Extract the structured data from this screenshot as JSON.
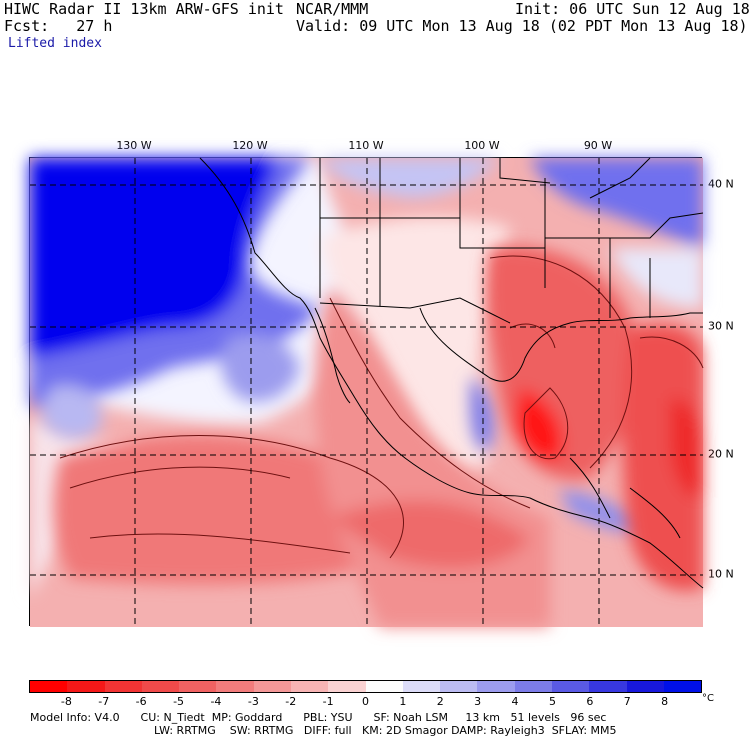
{
  "header": {
    "line1_left": "HIWC Radar II 13km ARW-GFS init",
    "line1_center": "NCAR/MMM",
    "line1_right": "Init: 06 UTC Sun 12 Aug 18",
    "line2_left": "Fcst:   27 h",
    "line2_right": "Valid: 09 UTC Mon 13 Aug 18 (02 PDT Mon 13 Aug 18)",
    "field_name": "Lifted index"
  },
  "map": {
    "lon_labels": [
      "130 W",
      "120 W",
      "110 W",
      "100 W",
      "90 W"
    ],
    "lat_labels": [
      "40 N",
      "30 N",
      "20 N",
      "10 N"
    ],
    "gridline_color": "#000000",
    "ocean_stable_color": "#0010e8",
    "unstable_color": "#ee3030"
  },
  "colorbar": {
    "tick_labels": [
      "-8",
      "-7",
      "-6",
      "-5",
      "-4",
      "-3",
      "-2",
      "-1",
      "0",
      "1",
      "2",
      "3",
      "4",
      "5",
      "6",
      "7",
      "8"
    ],
    "unit": "°C",
    "colors": [
      "#ff0000",
      "#f51818",
      "#f23434",
      "#f04a4a",
      "#f06262",
      "#f27c7c",
      "#f49898",
      "#f7b4b4",
      "#fad2d2",
      "#fcfcfc",
      "#dcdcf8",
      "#bcbcf2",
      "#9c9cee",
      "#7c7ce8",
      "#5a5ae4",
      "#3838e0",
      "#1818dc",
      "#0010e8"
    ]
  },
  "model_info": {
    "line1": "Model Info: V4.0      CU: N_Tiedt  MP: Goddard      PBL: YSU      SF: Noah LSM     13 km   51 levels   96 sec",
    "line2": "LW: RRTMG    SW: RRTMG   DIFF: full   KM: 2D Smagor DAMP: Rayleigh3  SFLAY: MM5"
  }
}
